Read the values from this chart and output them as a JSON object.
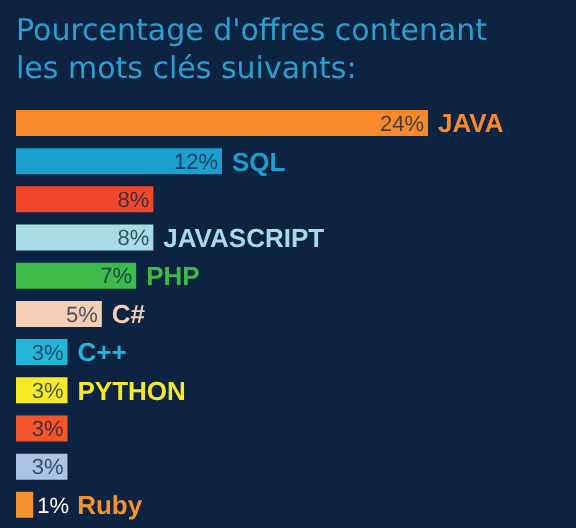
{
  "chart_data": {
    "type": "bar",
    "orientation": "horizontal",
    "title": "Pourcentage d'offres contenant les mots clés suivants:",
    "categories": [
      "JAVA",
      "SQL",
      null,
      "JAVASCRIPT",
      "PHP",
      "C#",
      "C++",
      "PYTHON",
      null,
      null,
      "Ruby"
    ],
    "values": [
      24,
      12,
      8,
      8,
      7,
      5,
      3,
      3,
      3,
      3,
      1
    ],
    "value_labels": [
      "24%",
      "12%",
      "8%",
      "8%",
      "7%",
      "5%",
      "3%",
      "3%",
      "3%",
      "3%",
      "1%"
    ],
    "colors": [
      "#f7892a",
      "#1a9fcf",
      "#f0492e",
      "#a8dbe6",
      "#3dba4a",
      "#f4cfb6",
      "#22b7d8",
      "#f7ea28",
      "#f2542c",
      "#a9c4e4",
      "#f7932e"
    ],
    "grid": false,
    "legend": false,
    "tick_labels": false
  }
}
